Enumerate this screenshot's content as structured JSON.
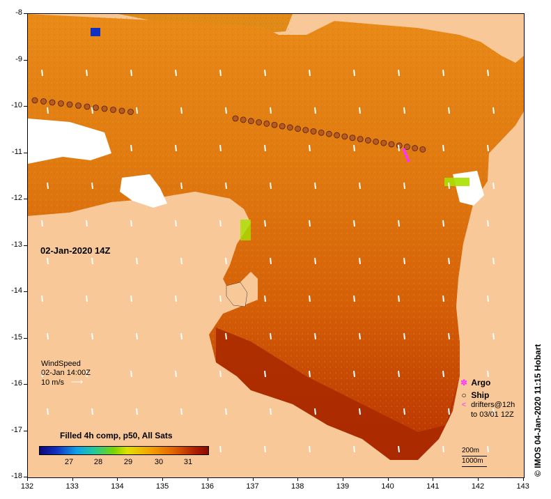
{
  "map": {
    "timestamp": "02-Jan-2020 14Z",
    "lat_labels": [
      "-8",
      "-9",
      "-10",
      "-11",
      "-12",
      "-13",
      "-14",
      "-15",
      "-16",
      "-17",
      "-18"
    ],
    "lon_labels": [
      "132",
      "133",
      "134",
      "135",
      "136",
      "137",
      "138",
      "139",
      "140",
      "141",
      "142",
      "143"
    ],
    "lat_range": [
      -18,
      -8
    ],
    "lon_range": [
      132,
      143
    ]
  },
  "wind": {
    "title": "WindSpeed",
    "time": "02-Jan 14:00Z",
    "scale": "10 m/s"
  },
  "colorbar": {
    "title": "Filled 4h comp, p50, All Sats",
    "labels": [
      "27",
      "28",
      "29",
      "30",
      "31"
    ]
  },
  "legend": {
    "argo": "Argo",
    "ship": "Ship",
    "drifters_line1": "drifters@12h",
    "drifters_line2": "to 03/01 12Z",
    "argo_color": "#ff33ff",
    "drifter_color": "#ff33ff"
  },
  "scale": {
    "contour1": "200m",
    "contour2": "1000m"
  },
  "credit": "© IMOS 04-Jan-2020 11:15 Hobart",
  "colors": {
    "land": "#f8c898",
    "sst_warm": "#c03a00",
    "sst_mid": "#e07a10",
    "sst_cool": "#f0a020",
    "cloud": "#ffffff",
    "ship_track": "#b85a20"
  }
}
